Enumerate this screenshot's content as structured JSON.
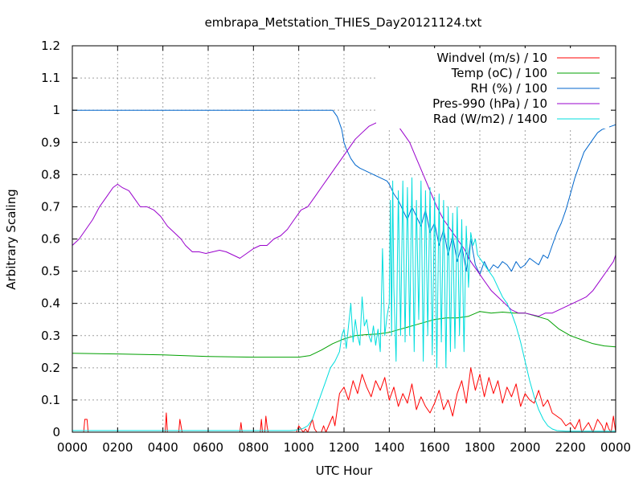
{
  "chart_data": {
    "type": "line",
    "title": "embrapa_Metstation_THIES_Day20121124.txt",
    "xlabel": "UTC Hour",
    "ylabel": "Arbitrary Scaling",
    "xlim": [
      0,
      24
    ],
    "ylim": [
      0,
      1.2
    ],
    "grid": true,
    "legend_position": "top-right",
    "x_ticks": [
      {
        "v": 0,
        "label": "0000"
      },
      {
        "v": 2,
        "label": "0200"
      },
      {
        "v": 4,
        "label": "0400"
      },
      {
        "v": 6,
        "label": "0600"
      },
      {
        "v": 8,
        "label": "0800"
      },
      {
        "v": 10,
        "label": "1000"
      },
      {
        "v": 12,
        "label": "1200"
      },
      {
        "v": 14,
        "label": "1400"
      },
      {
        "v": 16,
        "label": "1600"
      },
      {
        "v": 18,
        "label": "1800"
      },
      {
        "v": 20,
        "label": "2000"
      },
      {
        "v": 22,
        "label": "2200"
      },
      {
        "v": 24,
        "label": "0000"
      }
    ],
    "y_ticks": [
      {
        "v": 0,
        "label": "0"
      },
      {
        "v": 0.1,
        "label": "0.1"
      },
      {
        "v": 0.2,
        "label": "0.2"
      },
      {
        "v": 0.3,
        "label": "0.3"
      },
      {
        "v": 0.4,
        "label": "0.4"
      },
      {
        "v": 0.5,
        "label": "0.5"
      },
      {
        "v": 0.6,
        "label": "0.6"
      },
      {
        "v": 0.7,
        "label": "0.7"
      },
      {
        "v": 0.8,
        "label": "0.8"
      },
      {
        "v": 0.9,
        "label": "0.9"
      },
      {
        "v": 1,
        "label": "1"
      },
      {
        "v": 1.1,
        "label": "1.1"
      },
      {
        "v": 1.2,
        "label": "1.2"
      }
    ],
    "series": [
      {
        "name": "Windvel (m/s) / 10",
        "color": "#ff0000",
        "x": [
          0,
          0.5,
          0.55,
          0.6,
          0.65,
          0.7,
          0.75,
          4.1,
          4.15,
          4.2,
          4.25,
          4.7,
          4.75,
          4.8,
          4.85,
          7.4,
          7.45,
          7.5,
          8.3,
          8.35,
          8.4,
          8.5,
          8.55,
          8.6,
          8.65,
          9.9,
          10,
          10.1,
          10.2,
          10.3,
          10.4,
          10.5,
          10.6,
          10.7,
          10.8,
          11.0,
          11.1,
          11.2,
          11.5,
          11.6,
          11.8,
          12.0,
          12.2,
          12.4,
          12.6,
          12.8,
          13.0,
          13.2,
          13.4,
          13.6,
          13.8,
          14.0,
          14.2,
          14.4,
          14.6,
          14.8,
          15.0,
          15.2,
          15.4,
          15.6,
          15.8,
          16.0,
          16.2,
          16.4,
          16.6,
          16.8,
          17.0,
          17.2,
          17.4,
          17.6,
          17.8,
          18.0,
          18.2,
          18.4,
          18.6,
          18.8,
          19.0,
          19.2,
          19.4,
          19.6,
          19.8,
          20.0,
          20.2,
          20.4,
          20.6,
          20.8,
          21.0,
          21.2,
          21.4,
          21.6,
          21.8,
          22.0,
          22.2,
          22.4,
          22.5,
          22.6,
          22.8,
          23.0,
          23.2,
          23.4,
          23.5,
          23.6,
          23.7,
          23.8,
          23.9,
          24
        ],
        "y": [
          0,
          0,
          0.04,
          0.04,
          0.04,
          0,
          0,
          0,
          0.06,
          0,
          0,
          0,
          0.04,
          0.02,
          0,
          0,
          0.03,
          0,
          0,
          0.04,
          0,
          0,
          0.05,
          0.02,
          0,
          0,
          0.02,
          0.01,
          0,
          0.01,
          0,
          0.02,
          0.04,
          0.01,
          0,
          0,
          0.02,
          0,
          0.05,
          0.02,
          0.12,
          0.14,
          0.1,
          0.16,
          0.12,
          0.18,
          0.14,
          0.11,
          0.16,
          0.13,
          0.17,
          0.1,
          0.14,
          0.08,
          0.12,
          0.09,
          0.15,
          0.07,
          0.11,
          0.08,
          0.06,
          0.09,
          0.13,
          0.07,
          0.1,
          0.05,
          0.12,
          0.16,
          0.09,
          0.2,
          0.13,
          0.18,
          0.11,
          0.17,
          0.12,
          0.16,
          0.09,
          0.14,
          0.11,
          0.15,
          0.08,
          0.12,
          0.1,
          0.09,
          0.13,
          0.08,
          0.1,
          0.06,
          0.05,
          0.04,
          0.02,
          0.03,
          0.01,
          0.04,
          0,
          0.01,
          0.03,
          0,
          0.04,
          0.02,
          0,
          0.03,
          0.01,
          0,
          0.05,
          0
        ],
        "legend_visible": true
      },
      {
        "name": "Temp (oC) / 100",
        "color": "#00a000",
        "x": [
          0,
          2,
          4,
          6,
          8,
          10,
          10.5,
          11,
          11.5,
          12,
          12.5,
          13,
          13.5,
          14,
          14.5,
          15,
          15.5,
          16,
          16.5,
          17,
          17.5,
          18,
          18.5,
          19,
          19.5,
          20,
          20.5,
          21,
          21.5,
          22,
          22.5,
          23,
          23.5,
          24
        ],
        "y": [
          0.245,
          0.243,
          0.24,
          0.235,
          0.233,
          0.233,
          0.238,
          0.255,
          0.275,
          0.29,
          0.3,
          0.303,
          0.305,
          0.31,
          0.32,
          0.33,
          0.34,
          0.35,
          0.355,
          0.355,
          0.36,
          0.375,
          0.37,
          0.373,
          0.37,
          0.37,
          0.36,
          0.35,
          0.32,
          0.3,
          0.287,
          0.275,
          0.268,
          0.265
        ],
        "legend_visible": true
      },
      {
        "name": "RH (%) / 100",
        "color": "#0066cc",
        "x": [
          0,
          1,
          2,
          3,
          4,
          5,
          6,
          7,
          8,
          9,
          10,
          11,
          11.5,
          11.7,
          11.9,
          12.0,
          12.1,
          12.3,
          12.5,
          12.7,
          13,
          13.3,
          13.6,
          13.9,
          14.0,
          14.2,
          14.4,
          14.6,
          14.8,
          15.0,
          15.2,
          15.4,
          15.6,
          15.8,
          16.0,
          16.2,
          16.4,
          16.6,
          16.8,
          17.0,
          17.2,
          17.4,
          17.6,
          17.8,
          18.0,
          18.2,
          18.4,
          18.6,
          18.8,
          19.0,
          19.2,
          19.4,
          19.6,
          19.8,
          20.0,
          20.2,
          20.4,
          20.6,
          20.8,
          21.0,
          21.2,
          21.4,
          21.6,
          21.8,
          22.0,
          22.2,
          22.4,
          22.6,
          22.8,
          23.0,
          23.2,
          23.4,
          23.6,
          23.8,
          24
        ],
        "y": [
          1,
          1,
          1,
          1,
          1,
          1,
          1,
          1,
          1,
          1,
          1,
          1,
          1,
          0.98,
          0.94,
          0.9,
          0.88,
          0.85,
          0.83,
          0.82,
          0.81,
          0.8,
          0.79,
          0.78,
          0.77,
          0.74,
          0.72,
          0.69,
          0.66,
          0.7,
          0.67,
          0.64,
          0.69,
          0.62,
          0.65,
          0.58,
          0.63,
          0.55,
          0.61,
          0.53,
          0.58,
          0.5,
          0.6,
          0.52,
          0.49,
          0.53,
          0.5,
          0.52,
          0.51,
          0.53,
          0.52,
          0.5,
          0.53,
          0.51,
          0.52,
          0.54,
          0.53,
          0.52,
          0.55,
          0.54,
          0.58,
          0.62,
          0.65,
          0.69,
          0.74,
          0.79,
          0.83,
          0.87,
          0.89,
          0.91,
          0.93,
          0.94,
          0.945,
          0.95,
          0.955
        ],
        "legend_visible": true
      },
      {
        "name": "Pres-990 (hPa) / 10",
        "color": "#9900cc",
        "x": [
          0,
          0.3,
          0.6,
          0.9,
          1.2,
          1.5,
          1.8,
          2.0,
          2.2,
          2.5,
          2.8,
          3.0,
          3.3,
          3.6,
          3.9,
          4.2,
          4.5,
          4.8,
          5.0,
          5.3,
          5.6,
          5.9,
          6.2,
          6.5,
          6.8,
          7.1,
          7.4,
          7.7,
          8.0,
          8.3,
          8.6,
          8.9,
          9.2,
          9.5,
          9.8,
          10.1,
          10.4,
          10.7,
          11.0,
          11.3,
          11.6,
          11.9,
          12.2,
          12.5,
          12.8,
          13.1,
          13.4,
          13.7,
          13.9,
          14.1,
          14.3,
          14.6,
          14.9,
          15.2,
          15.5,
          15.8,
          16.1,
          16.4,
          16.7,
          17.0,
          17.3,
          17.6,
          17.9,
          18.2,
          18.5,
          18.8,
          19.1,
          19.4,
          19.7,
          20.0,
          20.3,
          20.6,
          20.9,
          21.2,
          21.5,
          21.8,
          22.1,
          22.4,
          22.7,
          23.0,
          23.3,
          23.6,
          23.9,
          24
        ],
        "y": [
          0.58,
          0.6,
          0.63,
          0.66,
          0.7,
          0.73,
          0.76,
          0.77,
          0.76,
          0.75,
          0.72,
          0.7,
          0.7,
          0.69,
          0.67,
          0.64,
          0.62,
          0.6,
          0.58,
          0.56,
          0.56,
          0.555,
          0.56,
          0.565,
          0.56,
          0.55,
          0.54,
          0.555,
          0.57,
          0.58,
          0.58,
          0.6,
          0.61,
          0.63,
          0.66,
          0.69,
          0.7,
          0.73,
          0.76,
          0.79,
          0.82,
          0.85,
          0.88,
          0.91,
          0.93,
          0.95,
          0.96,
          0.97,
          0.975,
          0.97,
          0.96,
          0.93,
          0.9,
          0.85,
          0.8,
          0.75,
          0.7,
          0.66,
          0.63,
          0.6,
          0.57,
          0.53,
          0.5,
          0.47,
          0.44,
          0.42,
          0.4,
          0.38,
          0.37,
          0.37,
          0.365,
          0.36,
          0.37,
          0.37,
          0.38,
          0.39,
          0.4,
          0.41,
          0.42,
          0.44,
          0.47,
          0.5,
          0.53,
          0.55
        ],
        "legend_visible": true
      },
      {
        "name": "Rad (W/m2) / 1400",
        "color": "#00dddd",
        "x": [
          0,
          9.6,
          9.8,
          10.0,
          10.2,
          10.4,
          10.6,
          10.8,
          11.0,
          11.2,
          11.4,
          11.6,
          11.8,
          11.9,
          12.0,
          12.1,
          12.2,
          12.3,
          12.4,
          12.5,
          12.6,
          12.7,
          12.8,
          12.9,
          13.0,
          13.1,
          13.2,
          13.3,
          13.4,
          13.5,
          13.6,
          13.7,
          13.8,
          13.9,
          14.0,
          14.05,
          14.1,
          14.15,
          14.2,
          14.3,
          14.4,
          14.5,
          14.6,
          14.7,
          14.8,
          14.9,
          15.0,
          15.1,
          15.2,
          15.3,
          15.4,
          15.5,
          15.6,
          15.7,
          15.8,
          15.9,
          16.0,
          16.1,
          16.2,
          16.3,
          16.4,
          16.5,
          16.6,
          16.7,
          16.8,
          16.9,
          17.0,
          17.1,
          17.2,
          17.3,
          17.4,
          17.5,
          17.6,
          17.7,
          17.8,
          17.9,
          18.0,
          18.2,
          18.4,
          18.6,
          18.8,
          19.0,
          19.2,
          19.4,
          19.6,
          19.8,
          20.0,
          20.2,
          20.4,
          20.6,
          20.8,
          21.0,
          21.2,
          21.4,
          21.6,
          21.8,
          22.0,
          22.2,
          22.4,
          24
        ],
        "y": [
          0.005,
          0.005,
          0.006,
          0.008,
          0.012,
          0.02,
          0.04,
          0.08,
          0.12,
          0.16,
          0.2,
          0.22,
          0.25,
          0.3,
          0.32,
          0.26,
          0.33,
          0.4,
          0.28,
          0.35,
          0.3,
          0.27,
          0.42,
          0.33,
          0.35,
          0.3,
          0.28,
          0.33,
          0.27,
          0.32,
          0.25,
          0.57,
          0.3,
          0.36,
          0.4,
          0.72,
          0.3,
          0.78,
          0.45,
          0.22,
          0.75,
          0.3,
          0.78,
          0.28,
          0.76,
          0.3,
          0.79,
          0.25,
          0.72,
          0.35,
          0.78,
          0.22,
          0.75,
          0.3,
          0.76,
          0.24,
          0.73,
          0.2,
          0.74,
          0.28,
          0.72,
          0.2,
          0.7,
          0.25,
          0.68,
          0.26,
          0.7,
          0.3,
          0.66,
          0.25,
          0.64,
          0.45,
          0.62,
          0.58,
          0.6,
          0.55,
          0.54,
          0.52,
          0.5,
          0.48,
          0.45,
          0.42,
          0.4,
          0.37,
          0.33,
          0.28,
          0.22,
          0.16,
          0.11,
          0.07,
          0.04,
          0.02,
          0.01,
          0.005,
          0.004,
          0.003,
          0.003,
          0.003,
          0.003,
          0.003
        ],
        "legend_visible": true
      }
    ]
  }
}
